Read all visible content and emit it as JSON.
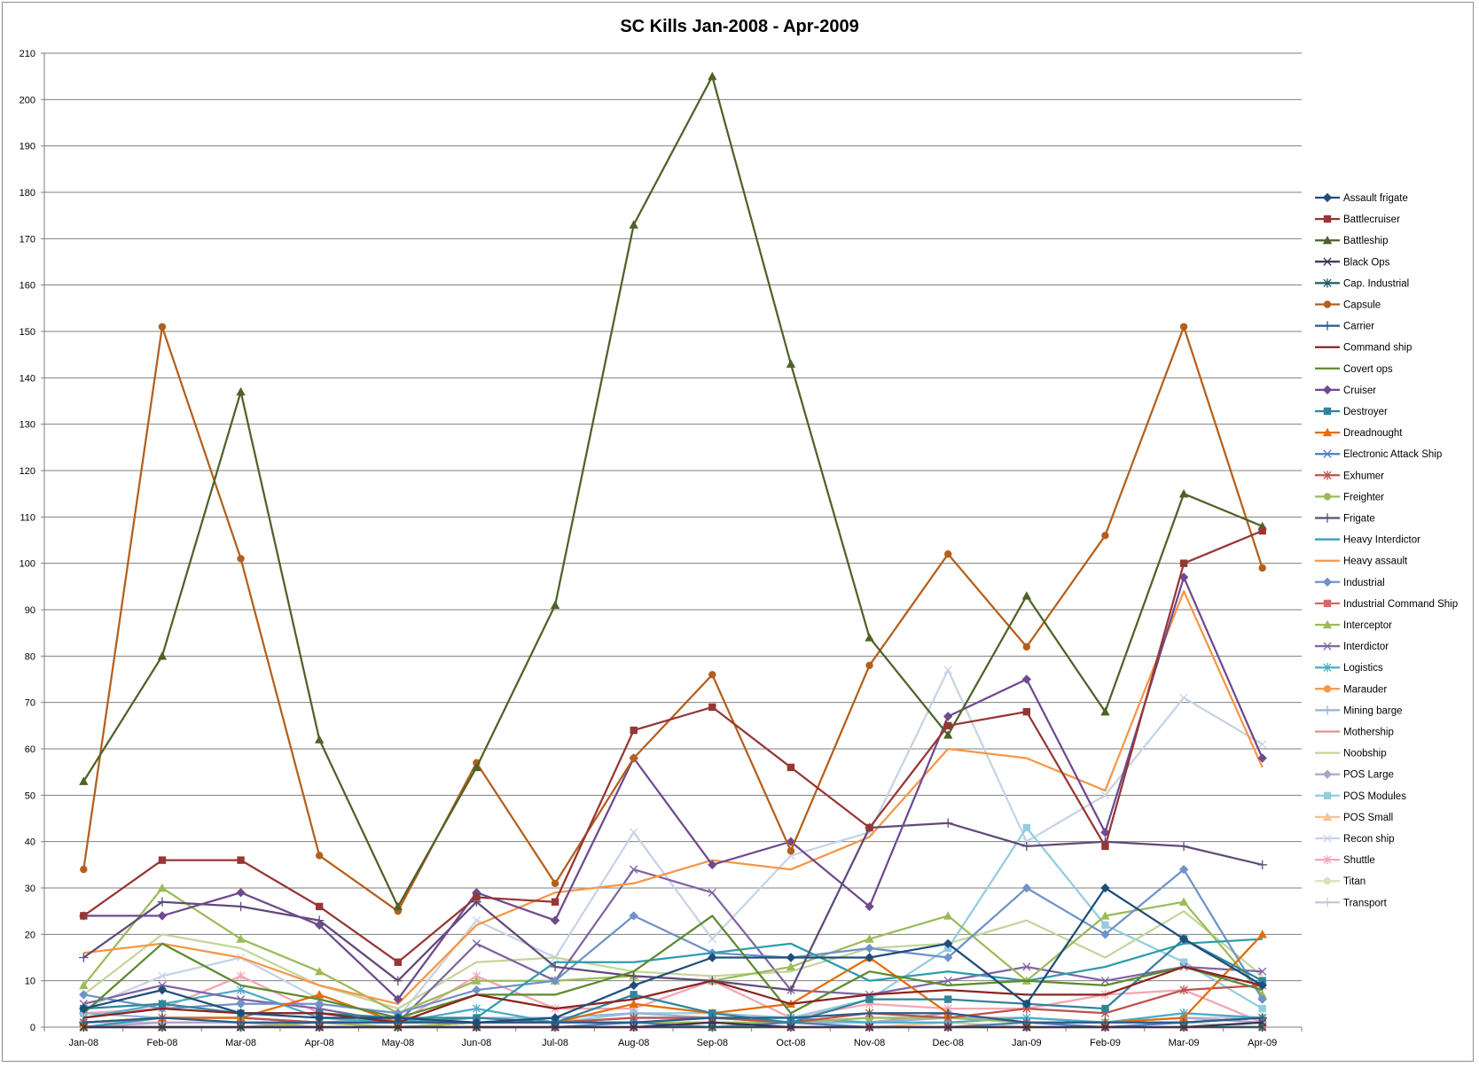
{
  "chart_data": {
    "type": "line",
    "title": "SC Kills Jan-2008 - Apr-2009",
    "xlabel": "",
    "ylabel": "",
    "ylim": [
      0,
      210
    ],
    "yticks": [
      0,
      10,
      20,
      30,
      40,
      50,
      60,
      70,
      80,
      90,
      100,
      110,
      120,
      130,
      140,
      150,
      160,
      170,
      180,
      190,
      200,
      210
    ],
    "grid": "horizontal",
    "legend_position": "right",
    "categories": [
      "Jan-08",
      "Feb-08",
      "Mar-08",
      "Apr-08",
      "May-08",
      "Jun-08",
      "Jul-08",
      "Aug-08",
      "Sep-08",
      "Oct-08",
      "Nov-08",
      "Dec-08",
      "Jan-09",
      "Feb-09",
      "Mar-09",
      "Apr-09"
    ],
    "series": [
      {
        "name": "Assault frigate",
        "color": "#1f4e79",
        "marker": "diamond",
        "values": [
          4,
          8,
          3,
          2,
          2,
          1,
          2,
          9,
          15,
          15,
          15,
          18,
          5,
          30,
          19,
          9
        ]
      },
      {
        "name": "Battlecruiser",
        "color": "#953735",
        "marker": "square",
        "values": [
          24,
          36,
          36,
          26,
          14,
          28,
          27,
          64,
          69,
          56,
          43,
          65,
          68,
          39,
          100,
          107
        ]
      },
      {
        "name": "Battleship",
        "color": "#4f6228",
        "marker": "triangle",
        "values": [
          53,
          80,
          137,
          62,
          26,
          56,
          91,
          173,
          205,
          143,
          84,
          63,
          93,
          68,
          115,
          108
        ]
      },
      {
        "name": "Black Ops",
        "color": "#403152",
        "marker": "x",
        "values": [
          0,
          0,
          0,
          0,
          0,
          0,
          0,
          0,
          1,
          0,
          0,
          0,
          0,
          0,
          0,
          1
        ]
      },
      {
        "name": "Cap. Industrial",
        "color": "#215968",
        "marker": "star",
        "values": [
          0,
          0,
          0,
          0,
          0,
          0,
          0,
          0,
          0,
          0,
          0,
          0,
          0,
          0,
          0,
          0
        ]
      },
      {
        "name": "Capsule",
        "color": "#b45f1c",
        "marker": "circle",
        "values": [
          34,
          151,
          101,
          37,
          25,
          57,
          31,
          58,
          76,
          38,
          78,
          102,
          82,
          106,
          151,
          99
        ]
      },
      {
        "name": "Carrier",
        "color": "#2a5a8a",
        "marker": "plus",
        "values": [
          1,
          2,
          1,
          1,
          1,
          1,
          1,
          1,
          2,
          2,
          3,
          3,
          1,
          1,
          1,
          2
        ]
      },
      {
        "name": "Command ship",
        "color": "#8b2323",
        "marker": "none",
        "values": [
          2,
          4,
          3,
          3,
          1,
          7,
          4,
          6,
          10,
          5,
          7,
          8,
          7,
          7,
          13,
          9
        ]
      },
      {
        "name": "Covert ops",
        "color": "#5e8a2e",
        "marker": "none",
        "values": [
          3,
          18,
          9,
          6,
          2,
          7,
          7,
          12,
          24,
          3,
          12,
          9,
          10,
          9,
          13,
          8
        ]
      },
      {
        "name": "Cruiser",
        "color": "#6e4a8e",
        "marker": "diamond",
        "values": [
          24,
          24,
          29,
          22,
          6,
          29,
          23,
          58,
          35,
          40,
          26,
          67,
          75,
          42,
          97,
          58
        ]
      },
      {
        "name": "Destroyer",
        "color": "#31849b",
        "marker": "square",
        "values": [
          4,
          5,
          3,
          3,
          2,
          2,
          1,
          7,
          3,
          1,
          6,
          6,
          5,
          4,
          19,
          10
        ]
      },
      {
        "name": "Dreadnought",
        "color": "#e46c0a",
        "marker": "triangle",
        "values": [
          1,
          2,
          2,
          7,
          1,
          1,
          1,
          5,
          3,
          5,
          15,
          3,
          1,
          1,
          2,
          20
        ]
      },
      {
        "name": "Electronic Attack Ship",
        "color": "#4a7ebb",
        "marker": "x",
        "values": [
          0,
          0,
          0,
          0,
          0,
          0,
          0,
          1,
          0,
          1,
          0,
          0,
          1,
          0,
          1,
          2
        ]
      },
      {
        "name": "Exhumer",
        "color": "#c0504d",
        "marker": "star",
        "values": [
          1,
          2,
          2,
          1,
          1,
          1,
          1,
          2,
          2,
          1,
          3,
          2,
          4,
          3,
          8,
          9
        ]
      },
      {
        "name": "Freighter",
        "color": "#9bbb59",
        "marker": "circle",
        "values": [
          0,
          0,
          0,
          1,
          0,
          1,
          1,
          1,
          1,
          1,
          2,
          2,
          1,
          1,
          1,
          2
        ]
      },
      {
        "name": "Frigate",
        "color": "#604a7b",
        "marker": "plus",
        "values": [
          15,
          27,
          26,
          23,
          10,
          27,
          13,
          11,
          10,
          8,
          43,
          44,
          39,
          40,
          39,
          35
        ]
      },
      {
        "name": "Heavy Interdictor",
        "color": "#2e9cb0",
        "marker": "none",
        "values": [
          0,
          2,
          2,
          1,
          1,
          2,
          14,
          14,
          16,
          18,
          10,
          12,
          10,
          13,
          18,
          19
        ]
      },
      {
        "name": "Heavy assault",
        "color": "#f79646",
        "marker": "none",
        "values": [
          16,
          18,
          15,
          9,
          5,
          22,
          29,
          31,
          36,
          34,
          41,
          60,
          58,
          51,
          94,
          56
        ]
      },
      {
        "name": "Industrial",
        "color": "#6f93c8",
        "marker": "diamond",
        "values": [
          7,
          4,
          5,
          5,
          3,
          8,
          10,
          24,
          16,
          15,
          17,
          15,
          30,
          20,
          34,
          6
        ]
      },
      {
        "name": "Industrial Command Ship",
        "color": "#d6686a",
        "marker": "square",
        "values": [
          0,
          0,
          0,
          0,
          0,
          0,
          0,
          0,
          0,
          0,
          0,
          0,
          0,
          0,
          0,
          0
        ]
      },
      {
        "name": "Interceptor",
        "color": "#9bbb59",
        "marker": "triangle",
        "values": [
          9,
          30,
          19,
          12,
          3,
          10,
          10,
          11,
          10,
          13,
          19,
          24,
          10,
          24,
          27,
          7
        ]
      },
      {
        "name": "Interdictor",
        "color": "#8064a2",
        "marker": "x",
        "values": [
          5,
          9,
          6,
          4,
          1,
          18,
          10,
          34,
          29,
          8,
          7,
          10,
          13,
          10,
          13,
          12
        ]
      },
      {
        "name": "Logistics",
        "color": "#4bacc6",
        "marker": "star",
        "values": [
          2,
          5,
          8,
          2,
          1,
          4,
          1,
          2,
          2,
          2,
          1,
          1,
          2,
          1,
          3,
          2
        ]
      },
      {
        "name": "Marauder",
        "color": "#f79646",
        "marker": "circle",
        "values": [
          0,
          0,
          0,
          0,
          0,
          0,
          0,
          0,
          0,
          0,
          0,
          0,
          0,
          0,
          0,
          0
        ]
      },
      {
        "name": "Mining barge",
        "color": "#95b3d7",
        "marker": "plus",
        "values": [
          3,
          2,
          2,
          1,
          2,
          2,
          2,
          3,
          2,
          1,
          1,
          2,
          2,
          1,
          3,
          2
        ]
      },
      {
        "name": "Mothership",
        "color": "#d99694",
        "marker": "none",
        "values": [
          0,
          0,
          0,
          0,
          0,
          0,
          0,
          0,
          0,
          0,
          0,
          0,
          0,
          0,
          0,
          0
        ]
      },
      {
        "name": "Noobship",
        "color": "#c3d69b",
        "marker": "none",
        "values": [
          7,
          20,
          17,
          9,
          4,
          14,
          15,
          12,
          11,
          12,
          17,
          18,
          23,
          15,
          25,
          11
        ]
      },
      {
        "name": "POS Large",
        "color": "#b3a2c7",
        "marker": "diamond",
        "values": [
          0,
          1,
          1,
          0,
          0,
          1,
          1,
          1,
          2,
          1,
          1,
          3,
          1,
          1,
          2,
          1
        ]
      },
      {
        "name": "POS Modules",
        "color": "#93cddd",
        "marker": "square",
        "values": [
          0,
          1,
          1,
          1,
          0,
          1,
          1,
          3,
          3,
          2,
          6,
          17,
          43,
          22,
          14,
          4
        ]
      },
      {
        "name": "POS Small",
        "color": "#fac090",
        "marker": "triangle",
        "values": [
          0,
          0,
          0,
          0,
          0,
          0,
          0,
          0,
          0,
          0,
          0,
          1,
          0,
          0,
          0,
          1
        ]
      },
      {
        "name": "Recon ship",
        "color": "#c6d3e6",
        "marker": "x",
        "values": [
          4,
          11,
          15,
          6,
          2,
          23,
          15,
          42,
          19,
          37,
          42,
          77,
          40,
          50,
          71,
          61
        ]
      },
      {
        "name": "Shuttle",
        "color": "#f2a6b3",
        "marker": "star",
        "values": [
          3,
          4,
          11,
          3,
          1,
          11,
          4,
          4,
          10,
          2,
          5,
          4,
          4,
          7,
          8,
          1
        ]
      },
      {
        "name": "Titan",
        "color": "#d7e4bd",
        "marker": "circle",
        "values": [
          0,
          0,
          0,
          0,
          0,
          0,
          0,
          0,
          0,
          0,
          0,
          0,
          0,
          0,
          1,
          0
        ]
      },
      {
        "name": "Transport",
        "color": "#ccc1da",
        "marker": "plus",
        "values": [
          1,
          1,
          1,
          1,
          0,
          1,
          1,
          2,
          2,
          1,
          2,
          2,
          2,
          1,
          2,
          2
        ]
      }
    ]
  }
}
